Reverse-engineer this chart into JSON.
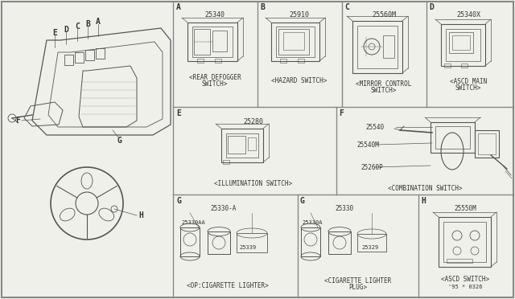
{
  "bg_color": "#f0f0eb",
  "line_color": "#555555",
  "text_color": "#333333",
  "border_color": "#888888",
  "sections": {
    "A": {
      "label": "A",
      "part": "25340",
      "caption1": "<REAR DEFOGGER",
      "caption2": "SWITCH>"
    },
    "B": {
      "label": "B",
      "part": "25910",
      "caption1": "<HAZARD SWITCH>",
      "caption2": ""
    },
    "C": {
      "label": "C",
      "part": "25560M",
      "caption1": "<MIRROR CONTROL",
      "caption2": "SWITCH>"
    },
    "D": {
      "label": "D",
      "part": "25340X",
      "caption1": "<ASCD MAIN",
      "caption2": "SWITCH>"
    },
    "E": {
      "label": "E",
      "part": "25280",
      "caption1": "<ILLUMINATION SWITCH>",
      "caption2": ""
    },
    "F": {
      "label": "F",
      "parts": [
        "25540",
        "25540M",
        "25260P"
      ],
      "caption1": "<COMBINATION SWITCH>",
      "caption2": ""
    },
    "G1": {
      "label": "G",
      "part": "25330-A",
      "parts2": [
        "25330AA",
        "25339"
      ],
      "caption1": "<OP:CIGARETTE LIGHTER>",
      "caption2": ""
    },
    "G2": {
      "label": "G",
      "part": "25330",
      "parts2": [
        "25330A",
        "25329"
      ],
      "caption1": "<CIGARETTE LIGHTER",
      "caption2": "PLUG>"
    },
    "H": {
      "label": "H",
      "part": "25550M",
      "caption1": "<ASCD SWITCH>",
      "caption2": "'95 * 0326"
    }
  }
}
